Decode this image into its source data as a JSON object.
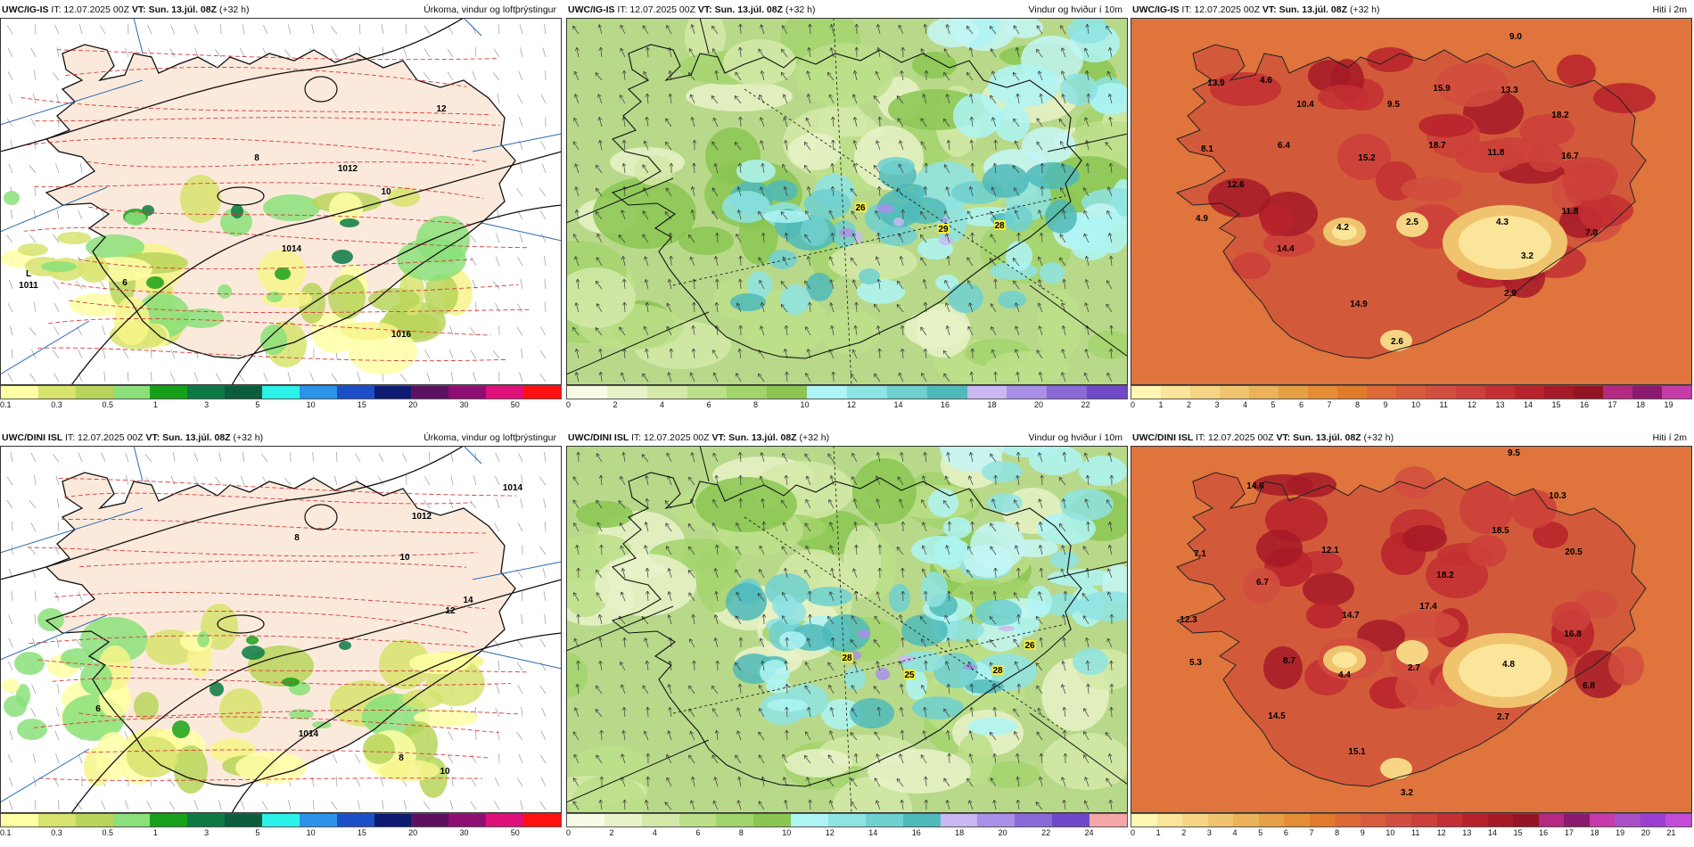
{
  "panels": [
    {
      "model": "UWC/IG-IS",
      "it": "IT: 12.07.2025 00Z",
      "vt": "VT: Sun. 13.júl. 08Z",
      "lead": "(+32 h)",
      "title": "Úrkoma, vindur og loftþrýstingur",
      "scale": {
        "colors": [
          "#ffffa6",
          "#d7e36d",
          "#b8d55a",
          "#8be07a",
          "#17a11a",
          "#0b7a45",
          "#0b5d3d",
          "#2bf1e8",
          "#2b93e8",
          "#1c4ec8",
          "#0c1a72",
          "#5d1060",
          "#8e0e74",
          "#e0107a",
          "#ff1010"
        ],
        "ticks": [
          "0.1",
          "0.3",
          "0.5",
          "1",
          "3",
          "5",
          "10",
          "15",
          "20",
          "30",
          "50"
        ]
      },
      "labels": [
        "1011",
        "L",
        "1014",
        "1012",
        "1016",
        "10",
        "12",
        "8",
        "6"
      ]
    },
    {
      "model": "UWC/IG-IS",
      "it": "IT: 12.07.2025 00Z",
      "vt": "VT: Sun. 13.júl. 08Z",
      "lead": "(+32 h)",
      "title": "Vindur og hviður í 10m",
      "scale": {
        "colors": [
          "#f8fbe6",
          "#e8f2c8",
          "#d4e9a8",
          "#bcdf8a",
          "#a2d46c",
          "#8ac651",
          "#aef4f4",
          "#8ee3e3",
          "#6fd0d0",
          "#4fbaba",
          "#c9b8f2",
          "#a990e8",
          "#8a6ad8",
          "#6f49c8"
        ],
        "ticks": [
          "0",
          "2",
          "4",
          "6",
          "8",
          "10",
          "12",
          "14",
          "16",
          "18",
          "20",
          "22"
        ]
      },
      "labels": [
        "26",
        "29",
        "28"
      ]
    },
    {
      "model": "UWC/IG-IS",
      "it": "IT: 12.07.2025 00Z",
      "vt": "VT: Sun. 13.júl. 08Z",
      "lead": "(+32 h)",
      "title": "Hiti í 2m",
      "scale": {
        "colors": [
          "#fff6b3",
          "#fbe59a",
          "#f6d685",
          "#f0c46f",
          "#ebb25a",
          "#e6a046",
          "#e48d35",
          "#e27a2c",
          "#dd6a36",
          "#d85c3b",
          "#d24e3e",
          "#cc3f3a",
          "#c32f33",
          "#b8222c",
          "#a61a27",
          "#951424",
          "#b42a83",
          "#8a1a6e",
          "#c73ba8"
        ],
        "ticks": [
          "0",
          "1",
          "2",
          "3",
          "4",
          "5",
          "6",
          "7",
          "8",
          "9",
          "10",
          "11",
          "12",
          "13",
          "14",
          "15",
          "16",
          "17",
          "18",
          "19"
        ]
      },
      "labels": [
        "9.0",
        "13.9",
        "4.6",
        "10.4",
        "15.9",
        "13.3",
        "9.5",
        "18.2",
        "8.1",
        "6.4",
        "15.2",
        "18.7",
        "11.8",
        "16.7",
        "12.6",
        "11.8",
        "4.9",
        "4.2",
        "2.5",
        "4.3",
        "7.0",
        "14.4",
        "3.2",
        "14.9",
        "2.9",
        "2.6"
      ]
    },
    {
      "model": "UWC/DINI ISL",
      "it": "IT: 12.07.2025 00Z",
      "vt": "VT: Sun. 13.júl. 08Z",
      "lead": "(+32 h)",
      "title": "Úrkoma, vindur og loftþrýstingur",
      "scale": {
        "colors": [
          "#ffffa6",
          "#d7e36d",
          "#b8d55a",
          "#8be07a",
          "#17a11a",
          "#0b7a45",
          "#0b5d3d",
          "#2bf1e8",
          "#2b93e8",
          "#1c4ec8",
          "#0c1a72",
          "#5d1060",
          "#8e0e74",
          "#e0107a",
          "#ff1010"
        ],
        "ticks": [
          "0.1",
          "0.3",
          "0.5",
          "1",
          "3",
          "5",
          "10",
          "15",
          "20",
          "30",
          "50"
        ]
      },
      "labels": [
        "1012",
        "1014",
        "1014",
        "8",
        "10",
        "12",
        "14",
        "6",
        "8",
        "10"
      ]
    },
    {
      "model": "UWC/DINI ISL",
      "it": "IT: 12.07.2025 00Z",
      "vt": "VT: Sun. 13.júl. 08Z",
      "lead": "(+32 h)",
      "title": "Vindur og hviður í 10m",
      "scale": {
        "colors": [
          "#f8fbe6",
          "#e8f2c8",
          "#d4e9a8",
          "#bcdf8a",
          "#a2d46c",
          "#8ac651",
          "#aef4f4",
          "#8ee3e3",
          "#6fd0d0",
          "#4fbaba",
          "#c9b8f2",
          "#a990e8",
          "#8a6ad8",
          "#6f49c8",
          "#f4a6a6"
        ],
        "ticks": [
          "0",
          "2",
          "4",
          "6",
          "8",
          "10",
          "12",
          "14",
          "16",
          "18",
          "20",
          "22",
          "24"
        ]
      },
      "labels": [
        "28",
        "25",
        "28",
        "26"
      ]
    },
    {
      "model": "UWC/DINI ISL",
      "it": "IT: 12.07.2025 00Z",
      "vt": "VT: Sun. 13.júl. 08Z",
      "lead": "(+32 h)",
      "title": "Hiti í 2m",
      "scale": {
        "colors": [
          "#fff6b3",
          "#fbe59a",
          "#f6d685",
          "#f0c46f",
          "#ebb25a",
          "#e6a046",
          "#e48d35",
          "#e27a2c",
          "#dd6a36",
          "#d85c3b",
          "#d24e3e",
          "#cc3f3a",
          "#c32f33",
          "#b8222c",
          "#a61a27",
          "#951424",
          "#b42a83",
          "#8a1a6e",
          "#c73ba8",
          "#a84fc7",
          "#9a3fd0",
          "#c24cd8"
        ],
        "ticks": [
          "0",
          "1",
          "2",
          "3",
          "4",
          "5",
          "6",
          "7",
          "8",
          "9",
          "10",
          "11",
          "12",
          "13",
          "14",
          "15",
          "16",
          "17",
          "18",
          "19",
          "20",
          "21"
        ]
      },
      "labels": [
        "9.5",
        "14.6",
        "10.3",
        "7.1",
        "12.1",
        "18.5",
        "20.5",
        "6.7",
        "18.2",
        "12.3",
        "14.7",
        "17.4",
        "16.8",
        "5.3",
        "8.7",
        "4.4",
        "2.7",
        "4.8",
        "6.8",
        "14.5",
        "2.7",
        "15.1",
        "3.2"
      ]
    }
  ]
}
